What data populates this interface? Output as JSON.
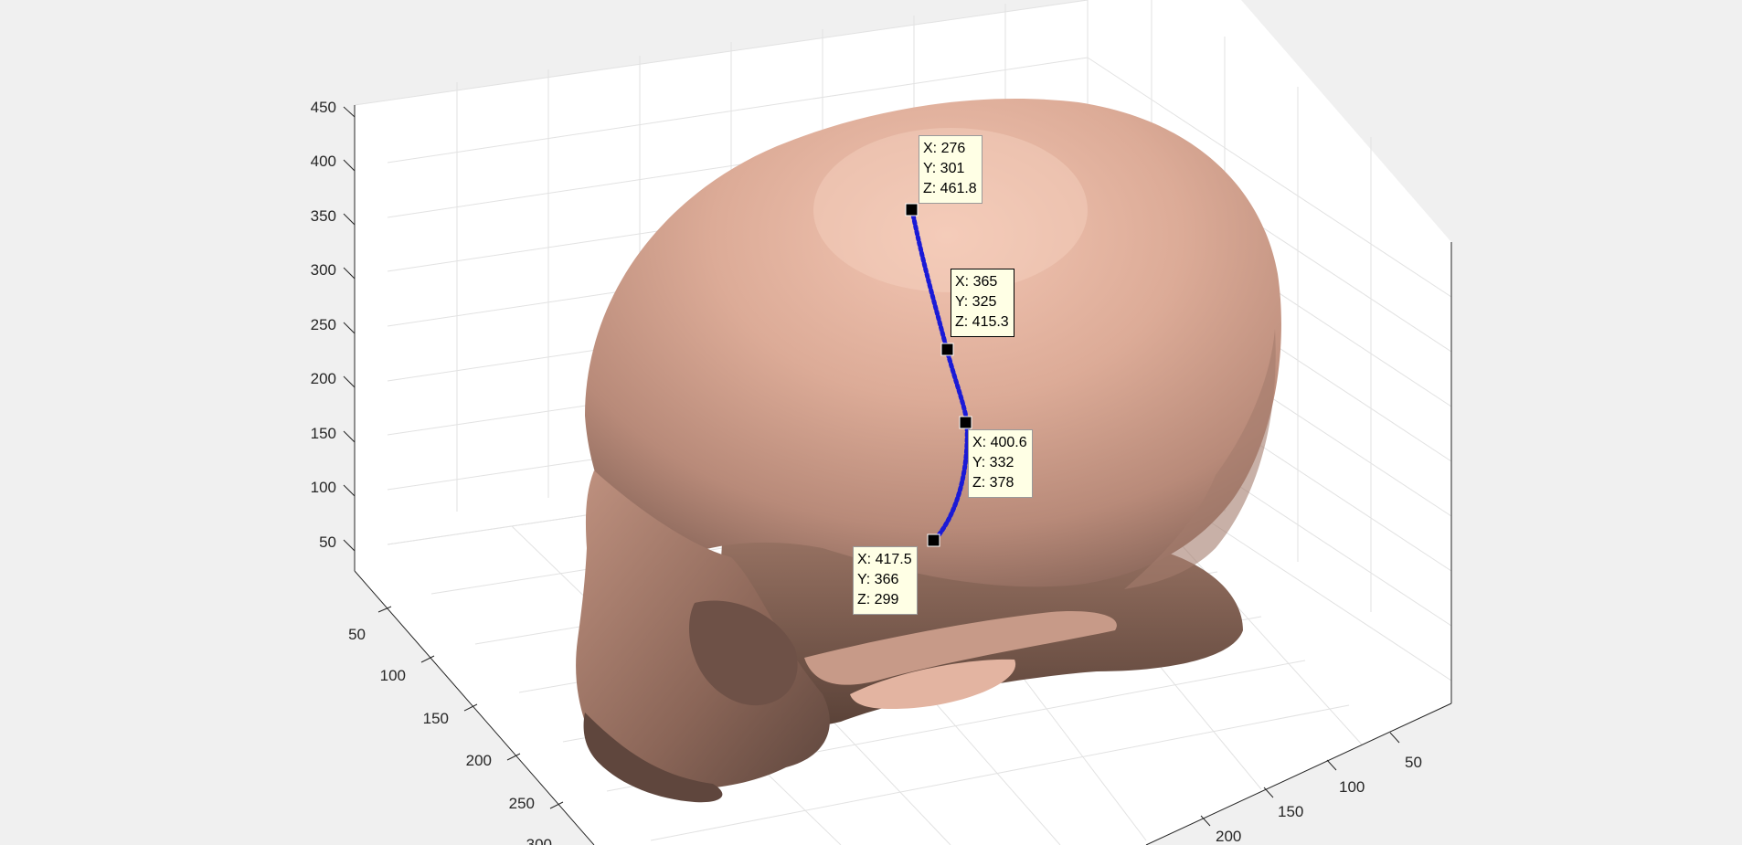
{
  "figure": {
    "background": "#f0f0f0",
    "axes_background": "#ffffff",
    "grid_color": "#e2e2e2",
    "axis_color": "#262626",
    "surface_color": "#d8a591",
    "curve_color": "#1a1ad6"
  },
  "axes": {
    "z_ticks": [
      "450",
      "400",
      "350",
      "300",
      "250",
      "200",
      "150",
      "100",
      "50"
    ],
    "y_ticks": [
      "50",
      "100",
      "150",
      "200",
      "250",
      "300"
    ],
    "x_ticks": [
      "50",
      "100",
      "150",
      "200"
    ]
  },
  "datatips": [
    {
      "x": "X: 276",
      "y": "Y: 301",
      "z": "Z: 461.8",
      "selected": false
    },
    {
      "x": "X: 365",
      "y": "Y: 325",
      "z": "Z: 415.3",
      "selected": true
    },
    {
      "x": "X: 400.6",
      "y": "Y: 332",
      "z": "Z: 378",
      "selected": false
    },
    {
      "x": "X: 417.5",
      "y": "Y: 366",
      "z": "Z: 299",
      "selected": false
    }
  ]
}
